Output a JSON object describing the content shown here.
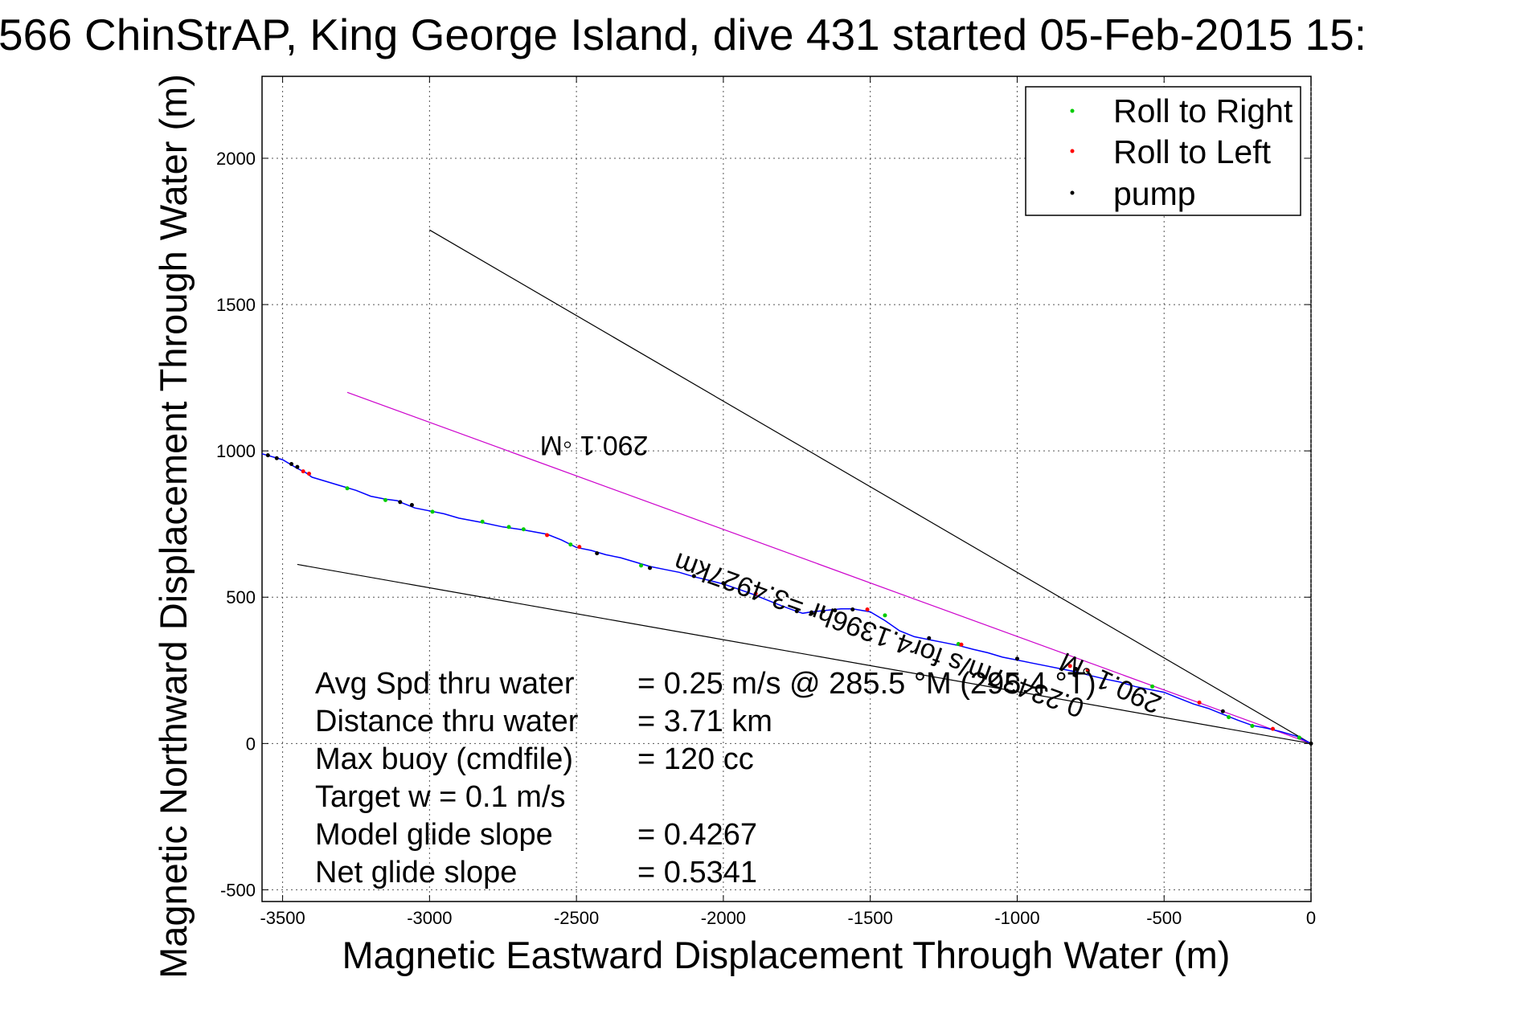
{
  "chart_data": {
    "type": "line",
    "title": "566 ChinStrAP, King George Island, dive 431 started 05-Feb-2015 15:",
    "xlabel": "Magnetic Eastward Displacement Through Water (m)",
    "ylabel": "Magnetic Northward Displacement Through Water (m)",
    "xlim": [
      -3570,
      0
    ],
    "ylim": [
      -540,
      2280
    ],
    "x_ticks": [
      -3500,
      -3000,
      -2500,
      -2000,
      -1500,
      -1000,
      -500,
      0
    ],
    "y_ticks": [
      -500,
      0,
      500,
      1000,
      1500,
      2000
    ],
    "x_tick_labels": [
      "-3500",
      "-3000",
      "-2500",
      "-2000",
      "-1500",
      "-1000",
      "-500",
      "0"
    ],
    "y_tick_labels": [
      "-500",
      "0",
      "500",
      "1000",
      "1500",
      "2000"
    ],
    "grid": true,
    "legend_position": "top-right",
    "legend": [
      {
        "label": "Roll to Right",
        "color": "#00cc00"
      },
      {
        "label": "Roll to Left",
        "color": "#ff0000"
      },
      {
        "label": "pump",
        "color": "#000000"
      }
    ],
    "series": [
      {
        "color": "#0000ff",
        "x": [
          -3570,
          -3500,
          -3450,
          -3420,
          -3400,
          -3350,
          -3300,
          -3250,
          -3200,
          -3150,
          -3110,
          -3100,
          -3050,
          -3000,
          -2950,
          -2900,
          -2820,
          -2750,
          -2680,
          -2600,
          -2550,
          -2500,
          -2450,
          -2400,
          -2350,
          -2300,
          -2250,
          -2200,
          -2150,
          -2100,
          -2050,
          -2000,
          -1950,
          -1900,
          -1850,
          -1800,
          -1760,
          -1730,
          -1700,
          -1650,
          -1600,
          -1560,
          -1500,
          -1450,
          -1400,
          -1350,
          -1300,
          -1250,
          -1200,
          -1150,
          -1100,
          -1050,
          -1000,
          -950,
          -900,
          -850,
          -800,
          -750,
          -700,
          -650,
          -600,
          -550,
          -500,
          -450,
          -400,
          -350,
          -300,
          -250,
          -200,
          -150,
          -100,
          -50,
          0
        ],
        "y": [
          990,
          970,
          940,
          925,
          910,
          895,
          880,
          865,
          845,
          835,
          830,
          825,
          805,
          795,
          785,
          770,
          755,
          740,
          730,
          715,
          695,
          670,
          660,
          645,
          635,
          620,
          605,
          595,
          585,
          570,
          558,
          545,
          528,
          510,
          490,
          470,
          455,
          445,
          450,
          455,
          460,
          460,
          450,
          420,
          385,
          365,
          355,
          345,
          335,
          322,
          310,
          295,
          285,
          275,
          265,
          255,
          245,
          232,
          220,
          210,
          195,
          185,
          175,
          155,
          135,
          120,
          100,
          80,
          62,
          52,
          40,
          25,
          0
        ]
      }
    ],
    "markers": {
      "roll_right": {
        "color": "#00cc00",
        "x": [
          -3280,
          -3150,
          -2990,
          -2820,
          -2730,
          -2680,
          -2520,
          -2280,
          -1450,
          -1200,
          -760,
          -540,
          -280,
          -200,
          -40
        ],
        "y": [
          872,
          832,
          792,
          758,
          740,
          732,
          680,
          608,
          438,
          340,
          248,
          195,
          90,
          60,
          20
        ]
      },
      "roll_left": {
        "color": "#ff0000",
        "x": [
          -3430,
          -3410,
          -2600,
          -2490,
          -1890,
          -1510,
          -1190,
          -820,
          -760,
          -380,
          -130
        ],
        "y": [
          930,
          922,
          712,
          672,
          512,
          458,
          338,
          265,
          250,
          140,
          50
        ]
      },
      "pump": {
        "color": "#000000",
        "x": [
          -3550,
          -3520,
          -3470,
          -3450,
          -3100,
          -3060,
          -2430,
          -2250,
          -2100,
          -2000,
          -1750,
          -1700,
          -1660,
          -1620,
          -1560,
          -1300,
          -1000,
          -800,
          -300,
          0
        ],
        "y": [
          985,
          975,
          955,
          945,
          825,
          815,
          650,
          600,
          572,
          548,
          452,
          448,
          452,
          455,
          458,
          360,
          290,
          255,
          110,
          0
        ]
      }
    },
    "reference_lines": [
      {
        "color": "#000000",
        "x": [
          -3000,
          0
        ],
        "y": [
          1755,
          0
        ]
      },
      {
        "color": "#000000",
        "x": [
          -3450,
          0
        ],
        "y": [
          612,
          0
        ]
      },
      {
        "color": "#cc00cc",
        "x": [
          -3280,
          0
        ],
        "y": [
          1200,
          0
        ]
      }
    ],
    "annotations": [
      {
        "text": "290.1 ◦M",
        "rotation_deg": 180,
        "x": -2440,
        "y": 1050
      },
      {
        "text": "0.23437m/s for4.1396hr =3.4927km",
        "rotation_deg": 200,
        "x": -1460,
        "y": 400
      },
      {
        "text": "290.1 ◦M",
        "rotation_deg": 205,
        "x": -670,
        "y": 235
      }
    ],
    "stats": [
      {
        "label": "Avg Spd thru water",
        "value": "=  0.25 m/s @ 285.5  °M (295.4 °T)"
      },
      {
        "label": "Distance thru water",
        "value": "=  3.71 km"
      },
      {
        "label": "Max buoy (cmdfile)",
        "value": "= 120 cc"
      },
      {
        "label": "Target w    = 0.1 m/s",
        "value": ""
      },
      {
        "label": "Model glide slope",
        "value": "= 0.4267"
      },
      {
        "label": "Net glide slope",
        "value": "= 0.5341"
      }
    ]
  }
}
